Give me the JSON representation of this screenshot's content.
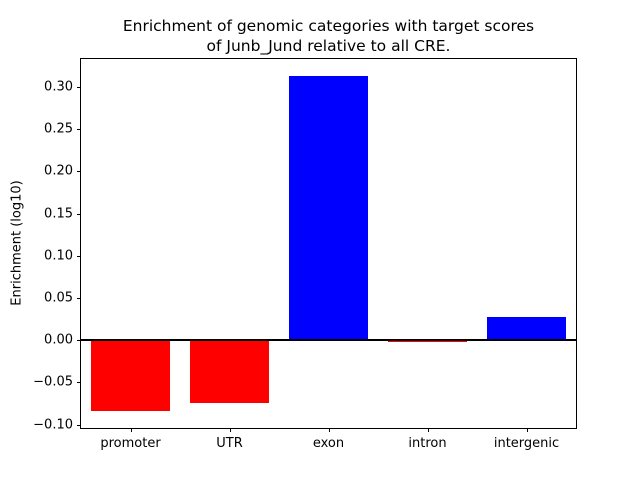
{
  "chart_data": {
    "type": "bar",
    "title_line1": "Enrichment of genomic categories with target scores",
    "title_line2": "of Junb_Jund relative to all CRE.",
    "ylabel": "Enrichment (log10)",
    "categories": [
      "promoter",
      "UTR",
      "exon",
      "intron",
      "intergenic"
    ],
    "values": [
      -0.084,
      -0.074,
      0.313,
      -0.002,
      0.027
    ],
    "positive_color": "#0000ff",
    "negative_color": "#ff0000",
    "bar_width_fraction": 0.8,
    "ylim": [
      -0.104,
      0.333
    ],
    "yticks": [
      -0.1,
      -0.05,
      0.0,
      0.05,
      0.1,
      0.15,
      0.2,
      0.25,
      0.3
    ],
    "ytick_labels": [
      "−0.10",
      "−0.05",
      "0.00",
      "0.05",
      "0.10",
      "0.15",
      "0.20",
      "0.25",
      "0.30"
    ],
    "zero_line": true,
    "grid": false,
    "legend": "none"
  }
}
